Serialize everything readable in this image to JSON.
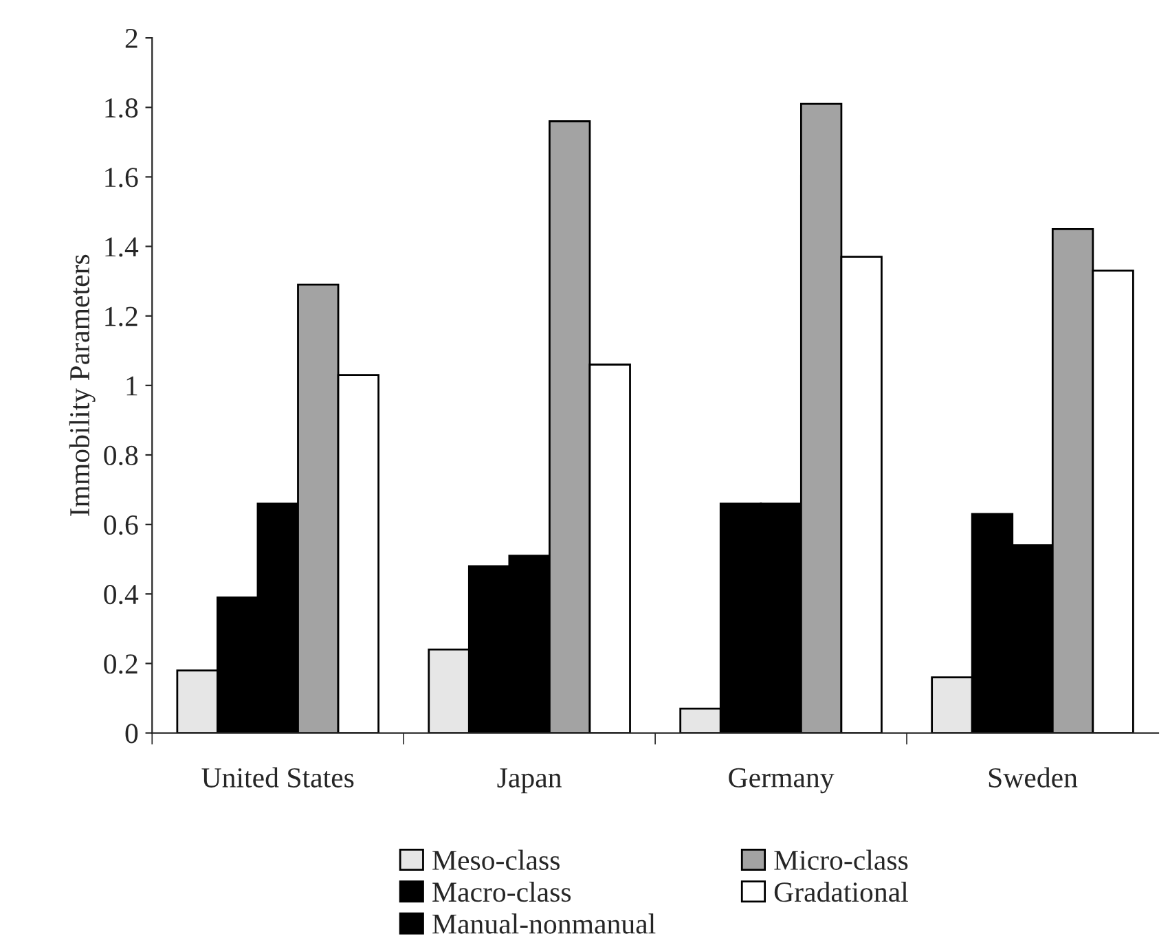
{
  "chart_data": {
    "type": "bar",
    "ylabel": "Immobility Parameters",
    "categories": [
      "United States",
      "Japan",
      "Germany",
      "Sweden"
    ],
    "series": [
      {
        "name": "Meso-class",
        "color": "#e6e6e6",
        "values": [
          0.18,
          0.24,
          0.07,
          0.16
        ]
      },
      {
        "name": "Macro-class",
        "color": "#000000",
        "values": [
          0.39,
          0.48,
          0.66,
          0.63
        ]
      },
      {
        "name": "Manual-nonmanual",
        "color": "#000000",
        "values": [
          0.66,
          0.51,
          0.66,
          0.54
        ]
      },
      {
        "name": "Micro-class",
        "color": "#a3a3a3",
        "values": [
          1.29,
          1.76,
          1.81,
          1.45
        ]
      },
      {
        "name": "Gradational",
        "color": "#ffffff",
        "values": [
          1.03,
          1.06,
          1.37,
          1.33
        ]
      }
    ],
    "ylim": [
      0,
      2
    ],
    "yticks": [
      0,
      0.2,
      0.4,
      0.6,
      0.8,
      1,
      1.2,
      1.4,
      1.6,
      1.8,
      2
    ],
    "grid": false,
    "legend": "bottom"
  }
}
